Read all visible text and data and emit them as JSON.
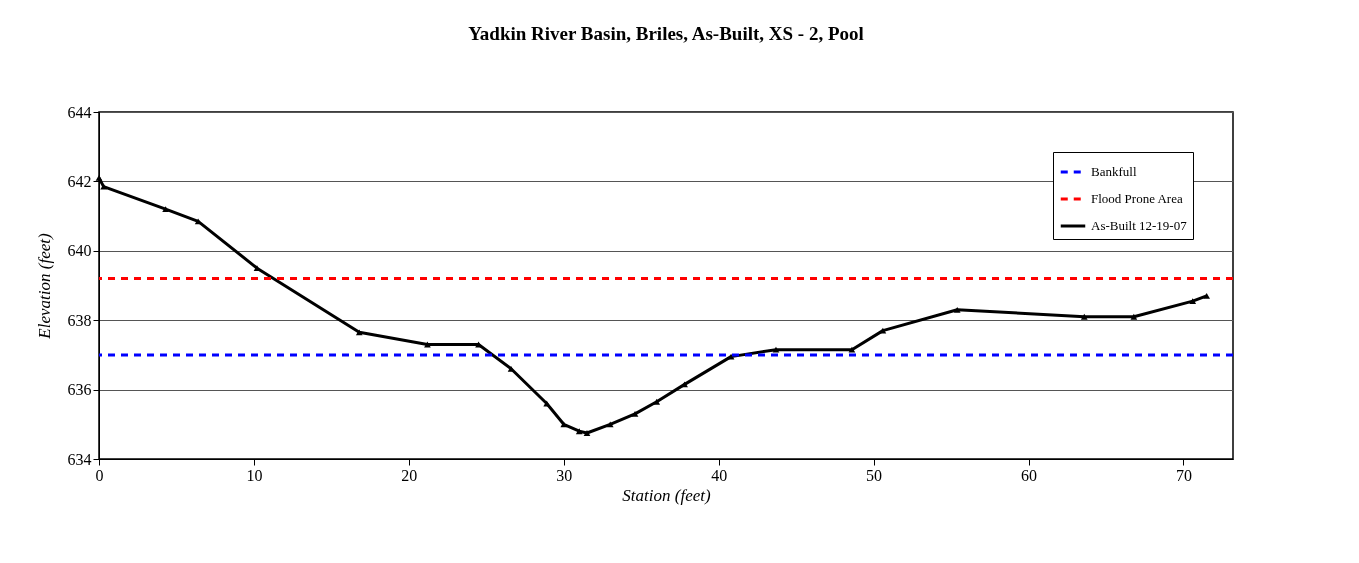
{
  "chart_data": {
    "type": "line",
    "title": "Yadkin River Basin, Briles, As-Built, XS - 2, Pool",
    "xlabel": "Station (feet)",
    "ylabel": "Elevation (feet)",
    "x": [
      0,
      0.3,
      4.3,
      6.4,
      10.2,
      16.8,
      21.2,
      24.5,
      26.6,
      28.9,
      30.0,
      31.0,
      31.5,
      33.0,
      34.6,
      36.0,
      37.8,
      40.8,
      43.7,
      48.6,
      50.6,
      55.4,
      63.6,
      66.8,
      70.6,
      71.5
    ],
    "series": [
      {
        "name": "As-Built 12-19-07",
        "color": "#000000",
        "values": [
          642.1,
          641.85,
          641.2,
          640.85,
          639.5,
          637.65,
          637.3,
          637.3,
          636.6,
          635.6,
          635.0,
          634.8,
          634.75,
          635.0,
          635.3,
          635.65,
          636.15,
          636.95,
          637.15,
          637.15,
          637.7,
          638.3,
          638.1,
          638.1,
          638.55,
          638.7
        ]
      }
    ],
    "ref_lines": [
      {
        "axis": "y",
        "value": 637.0,
        "label": "Bankfull",
        "color": "#0000ff",
        "line_style": "dashed"
      },
      {
        "axis": "y",
        "value": 639.2,
        "label": "Flood Prone Area",
        "color": "#ff0000",
        "line_style": "dashed"
      }
    ],
    "xlim": [
      0,
      73.2
    ],
    "xticks": [
      0,
      10,
      20,
      30,
      40,
      50,
      60,
      70
    ],
    "ylim": [
      634,
      644
    ],
    "yticks": [
      634,
      636,
      638,
      640,
      642,
      644
    ],
    "grid": "y",
    "legend": "top right",
    "marker": "triangle",
    "line_style": "solid"
  }
}
